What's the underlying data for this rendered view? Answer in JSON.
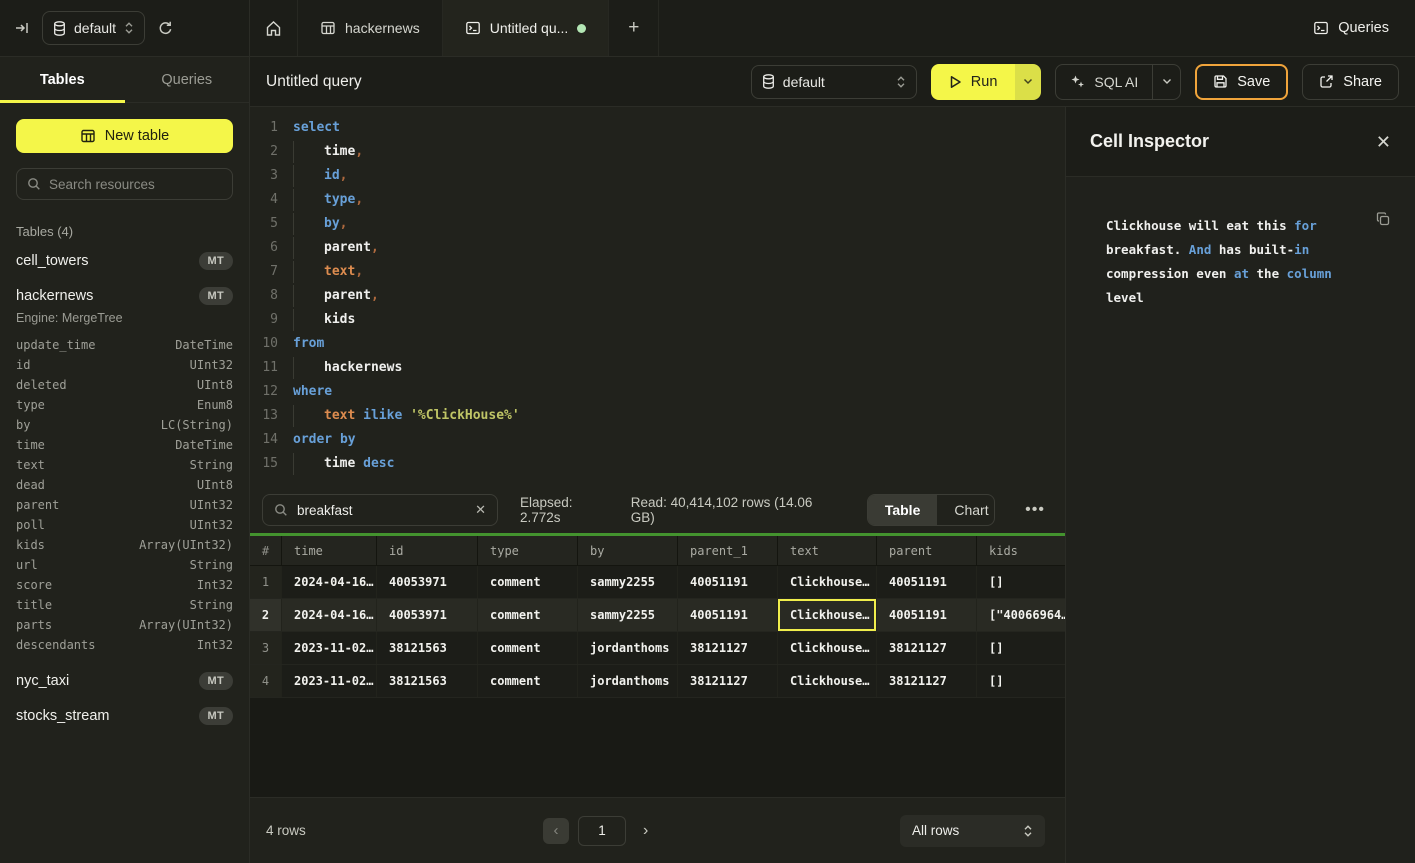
{
  "colors": {
    "accent_yellow": "#f4f649",
    "run_caret_yellow": "#dbdf48",
    "save_border_amber": "#f0a43b",
    "tab_green_dot": "#b3e6b4",
    "progress_green": "#43932e",
    "selected_cell_outline": "#f0ee4c",
    "keyword_blue": "#68a0d8",
    "string_yellow": "#bfc566",
    "field_orange": "#dd8c4f",
    "comma_orange": "#b06a3e"
  },
  "topbar": {
    "database_selector": "default",
    "tab_hackernews": "hackernews",
    "tab_untitled": "Untitled qu...",
    "plus": "+",
    "queries_label": "Queries"
  },
  "sidebar": {
    "tab_tables": "Tables",
    "tab_queries": "Queries",
    "new_table": "New table",
    "search_placeholder": "Search resources",
    "section_label": "Tables (4)",
    "badge": "MT",
    "tables": {
      "cell_towers": "cell_towers",
      "hackernews": "hackernews",
      "nyc_taxi": "nyc_taxi",
      "stocks_stream": "stocks_stream"
    },
    "engine_label": "Engine: MergeTree",
    "hackernews_columns": [
      {
        "name": "update_time",
        "type": "DateTime"
      },
      {
        "name": "id",
        "type": "UInt32"
      },
      {
        "name": "deleted",
        "type": "UInt8"
      },
      {
        "name": "type",
        "type": "Enum8"
      },
      {
        "name": "by",
        "type": "LC(String)"
      },
      {
        "name": "time",
        "type": "DateTime"
      },
      {
        "name": "text",
        "type": "String"
      },
      {
        "name": "dead",
        "type": "UInt8"
      },
      {
        "name": "parent",
        "type": "UInt32"
      },
      {
        "name": "poll",
        "type": "UInt32"
      },
      {
        "name": "kids",
        "type": "Array(UInt32)"
      },
      {
        "name": "url",
        "type": "String"
      },
      {
        "name": "score",
        "type": "Int32"
      },
      {
        "name": "title",
        "type": "String"
      },
      {
        "name": "parts",
        "type": "Array(UInt32)"
      },
      {
        "name": "descendants",
        "type": "Int32"
      }
    ]
  },
  "toolbar": {
    "title": "Untitled query",
    "database": "default",
    "run": "Run",
    "sql_ai": "SQL AI",
    "save": "Save",
    "share": "Share"
  },
  "editor": {
    "lines": [
      {
        "n": "1",
        "ind": false,
        "t": [
          [
            "select",
            "kw"
          ]
        ]
      },
      {
        "n": "2",
        "ind": true,
        "t": [
          [
            "time",
            "id"
          ],
          [
            ",",
            "pn"
          ]
        ]
      },
      {
        "n": "3",
        "ind": true,
        "t": [
          [
            "id",
            "kw"
          ],
          [
            ",",
            "pn"
          ]
        ]
      },
      {
        "n": "4",
        "ind": true,
        "t": [
          [
            "type",
            "kw"
          ],
          [
            ",",
            "pn"
          ]
        ]
      },
      {
        "n": "5",
        "ind": true,
        "t": [
          [
            "by",
            "kw"
          ],
          [
            ",",
            "pn"
          ]
        ]
      },
      {
        "n": "6",
        "ind": true,
        "t": [
          [
            "parent",
            "id"
          ],
          [
            ",",
            "pn"
          ]
        ]
      },
      {
        "n": "7",
        "ind": true,
        "t": [
          [
            "text",
            "fld"
          ],
          [
            ",",
            "pn"
          ]
        ]
      },
      {
        "n": "8",
        "ind": true,
        "t": [
          [
            "parent",
            "id"
          ],
          [
            ",",
            "pn"
          ]
        ]
      },
      {
        "n": "9",
        "ind": true,
        "t": [
          [
            "kids",
            "id"
          ]
        ]
      },
      {
        "n": "10",
        "ind": false,
        "t": [
          [
            "from",
            "kw"
          ]
        ]
      },
      {
        "n": "11",
        "ind": true,
        "t": [
          [
            "hackernews",
            "id"
          ]
        ]
      },
      {
        "n": "12",
        "ind": false,
        "t": [
          [
            "where",
            "kw"
          ]
        ]
      },
      {
        "n": "13",
        "ind": true,
        "t": [
          [
            "text",
            "fld"
          ],
          [
            " ",
            "pl"
          ],
          [
            "ilike",
            "kw"
          ],
          [
            " ",
            "pl"
          ],
          [
            "'%ClickHouse%'",
            "str"
          ]
        ]
      },
      {
        "n": "14",
        "ind": false,
        "t": [
          [
            "order by",
            "kw"
          ]
        ]
      },
      {
        "n": "15",
        "ind": true,
        "t": [
          [
            "time",
            "id"
          ],
          [
            " ",
            "pl"
          ],
          [
            "desc",
            "kw"
          ]
        ]
      }
    ]
  },
  "results": {
    "search_value": "breakfast",
    "elapsed": "Elapsed: 2.772s",
    "read": "Read: 40,414,102 rows (14.06 GB)",
    "tab_table": "Table",
    "tab_chart": "Chart",
    "more": "...",
    "columns": [
      "#",
      "time",
      "id",
      "type",
      "by",
      "parent_1",
      "text",
      "parent",
      "kids"
    ],
    "rows": [
      {
        "num": "1",
        "selected": false,
        "cells": [
          "2024-04-16…",
          "40053971",
          "comment",
          "sammy2255",
          "40051191",
          "Clickhouse…",
          "40051191",
          "[]"
        ]
      },
      {
        "num": "2",
        "selected": true,
        "selected_cell": 5,
        "cells": [
          "2024-04-16…",
          "40053971",
          "comment",
          "sammy2255",
          "40051191",
          "Clickhouse…",
          "40051191",
          "[\"40066964…"
        ]
      },
      {
        "num": "3",
        "selected": false,
        "cells": [
          "2023-11-02…",
          "38121563",
          "comment",
          "jordanthoms",
          "38121127",
          "Clickhouse…",
          "38121127",
          "[]"
        ]
      },
      {
        "num": "4",
        "selected": false,
        "cells": [
          "2023-11-02…",
          "38121563",
          "comment",
          "jordanthoms",
          "38121127",
          "Clickhouse…",
          "38121127",
          "[]"
        ]
      }
    ],
    "footer": {
      "count": "4 rows",
      "prev": "‹",
      "page": "1",
      "next": "›",
      "page_size": "All rows"
    }
  },
  "inspector": {
    "title": "Cell Inspector",
    "close": "✕",
    "lines": [
      [
        [
          "Clickhouse will eat this ",
          "w"
        ],
        [
          "for",
          "b"
        ]
      ],
      [
        [
          "breakfast. ",
          "w"
        ],
        [
          "And",
          "b"
        ],
        [
          " has built-",
          "w"
        ],
        [
          "in",
          "b"
        ]
      ],
      [
        [
          "compression even ",
          "w"
        ],
        [
          "at",
          "b"
        ],
        [
          " the ",
          "w"
        ],
        [
          "column",
          "b"
        ],
        [
          " level",
          "w"
        ]
      ]
    ]
  }
}
